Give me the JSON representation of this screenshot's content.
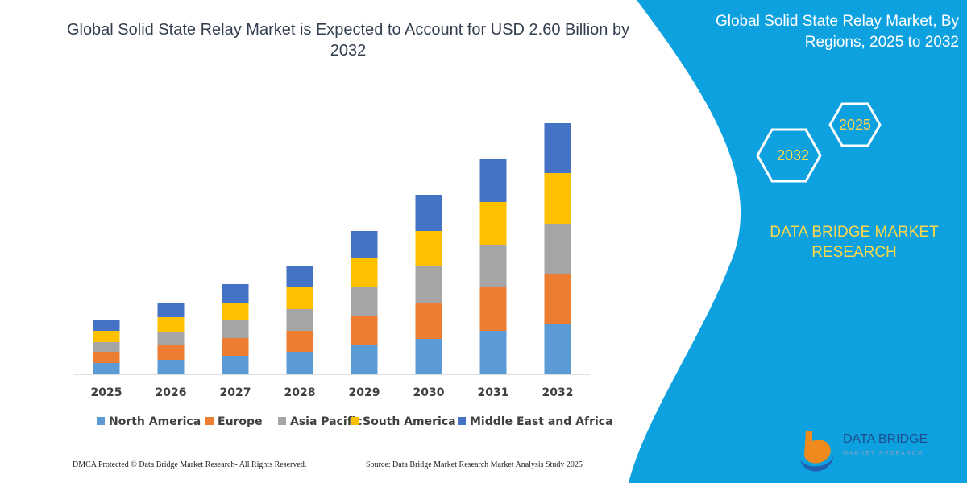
{
  "chart_data": {
    "type": "bar",
    "stacked": true,
    "title": "Global Solid State Relay Market is Expected to Account for USD 2.60 Billion by 2032",
    "categories": [
      "2025",
      "2026",
      "2027",
      "2028",
      "2029",
      "2030",
      "2031",
      "2032"
    ],
    "series": [
      {
        "name": "North America",
        "color": "#5b9bd5",
        "values": [
          14,
          18,
          23,
          28,
          37,
          44,
          54,
          62
        ]
      },
      {
        "name": "Europe",
        "color": "#ed7d31",
        "values": [
          14,
          18,
          22,
          26,
          35,
          45,
          54,
          63
        ]
      },
      {
        "name": "Asia Pacific",
        "color": "#a5a5a5",
        "values": [
          12,
          17,
          22,
          27,
          36,
          45,
          53,
          62
        ]
      },
      {
        "name": "South America",
        "color": "#ffc000",
        "values": [
          14,
          18,
          22,
          27,
          36,
          44,
          53,
          63
        ]
      },
      {
        "name": "Middle East and Africa",
        "color": "#4472c4",
        "values": [
          13,
          18,
          23,
          27,
          34,
          45,
          54,
          62
        ]
      }
    ],
    "ylim": [
      0,
      312
    ],
    "legend": "bottom"
  },
  "panel": {
    "title": "Global Solid State Relay Market, By Regions, 2025 to 2032",
    "hexagons": [
      "2025",
      "2032"
    ],
    "brand": "DATA BRIDGE MARKET RESEARCH"
  },
  "logo": {
    "name": "DATA BRIDGE",
    "tagline": "MARKET RESEARCH"
  },
  "footer": {
    "left": "DMCA Protected © Data Bridge Market Research-  All Rights Reserved.",
    "right": "Source: Data Bridge Market Research  Market Analysis Study 2025"
  }
}
